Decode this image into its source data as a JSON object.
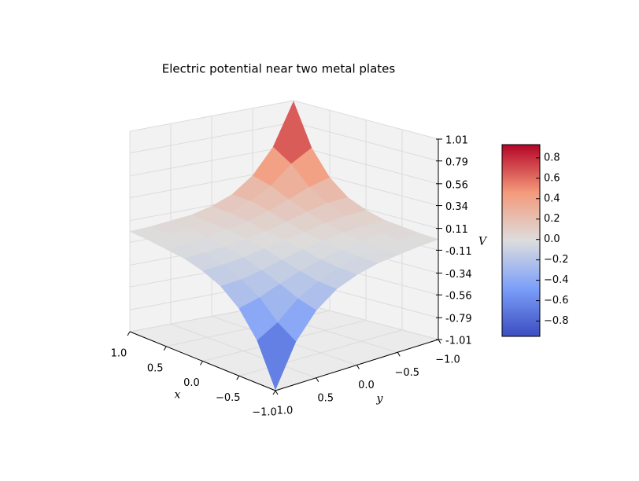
{
  "chart_data": {
    "type": "surface",
    "title": "Electric potential near two metal plates",
    "xlabel": "x",
    "ylabel": "y",
    "zlabel": "V",
    "colormap": "coolwarm",
    "x": [
      -1,
      -0.75,
      -0.5,
      -0.25,
      0,
      0.25,
      0.5,
      0.75,
      1
    ],
    "y": [
      -1,
      -0.75,
      -0.5,
      -0.25,
      0,
      0.25,
      0.5,
      0.75,
      1
    ],
    "z": [
      [
        0,
        -0.01,
        -0.03,
        -0.05,
        -0.1,
        -0.18,
        -0.33,
        -0.58,
        -1.0
      ],
      [
        0.01,
        0,
        -0.02,
        -0.04,
        -0.09,
        -0.17,
        -0.28,
        -0.46,
        -0.58
      ],
      [
        0.03,
        0.02,
        0,
        -0.03,
        -0.07,
        -0.13,
        -0.2,
        -0.28,
        -0.33
      ],
      [
        0.05,
        0.04,
        0.03,
        0,
        -0.03,
        -0.08,
        -0.13,
        -0.17,
        -0.18
      ],
      [
        0.1,
        0.09,
        0.07,
        0.03,
        0,
        -0.03,
        -0.07,
        -0.09,
        -0.1
      ],
      [
        0.18,
        0.17,
        0.13,
        0.08,
        0.03,
        0,
        -0.03,
        -0.04,
        -0.05
      ],
      [
        0.33,
        0.28,
        0.2,
        0.13,
        0.07,
        0.03,
        0,
        -0.02,
        -0.03
      ],
      [
        0.58,
        0.46,
        0.28,
        0.17,
        0.09,
        0.04,
        0.02,
        0,
        -0.01
      ],
      [
        1.0,
        0.58,
        0.33,
        0.18,
        0.1,
        0.05,
        0.03,
        0.01,
        0
      ]
    ],
    "xlim": [
      -1,
      1
    ],
    "ylim": [
      -1,
      1
    ],
    "zlim": [
      -1.01,
      1.01
    ],
    "xticks": [
      {
        "value": 1,
        "label": "1.0"
      },
      0.5,
      {
        "value": 0,
        "label": "0.0"
      },
      {
        "value": -0.5,
        "label": "−0.5"
      },
      {
        "value": -1,
        "label": "−1.0"
      }
    ],
    "yticks": [
      {
        "value": -1,
        "label": "−1.0"
      },
      {
        "value": -0.5,
        "label": "−0.5"
      },
      {
        "value": 0,
        "label": "0.0"
      },
      0.5,
      {
        "value": 1,
        "label": "1.0"
      }
    ],
    "zticks": [
      -1.01,
      -0.79,
      -0.56,
      -0.34,
      -0.11,
      0.11,
      0.34,
      0.56,
      0.79,
      1.01
    ],
    "grid": true,
    "colorbar": {
      "lim": [
        -0.95,
        0.93
      ],
      "ticks": [
        0.8,
        0.6,
        0.4,
        0.2,
        {
          "value": 0,
          "label": "0.0"
        },
        {
          "value": -0.2,
          "label": "−0.2"
        },
        {
          "value": -0.4,
          "label": "−0.4"
        },
        {
          "value": -0.6,
          "label": "−0.6"
        },
        {
          "value": -0.8,
          "label": "−0.8"
        }
      ]
    }
  }
}
